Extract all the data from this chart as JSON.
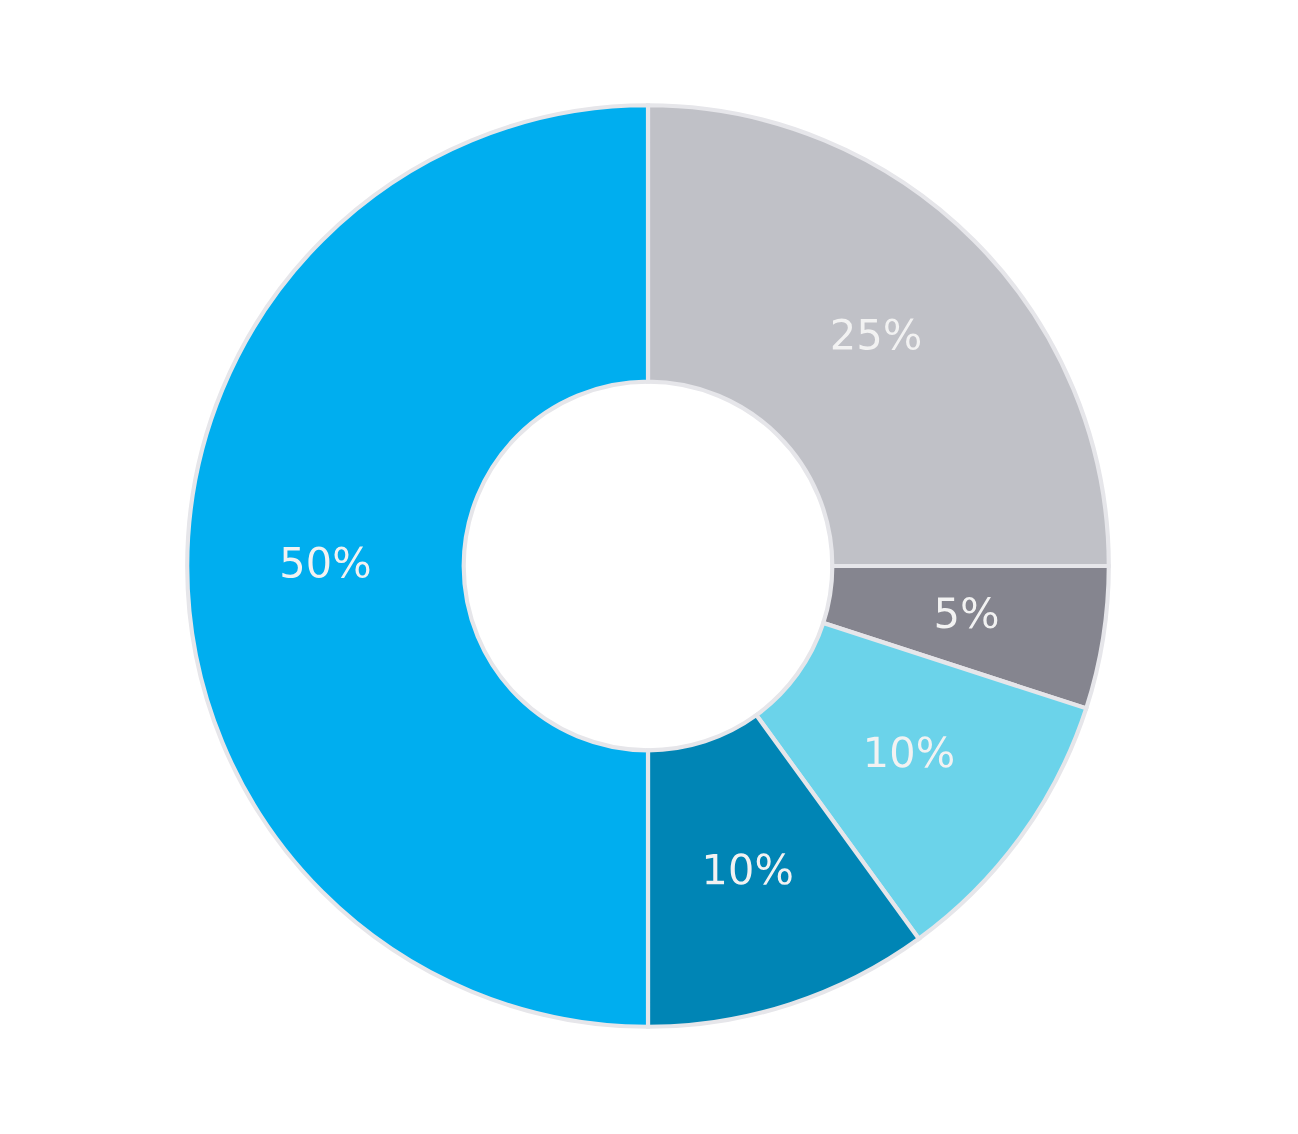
{
  "chart_data": {
    "type": "donut",
    "categories": [
      null,
      null,
      null,
      null,
      null
    ],
    "values": [
      25,
      5,
      10,
      10,
      50
    ],
    "colors": [
      "#c0c1c7",
      "#85858f",
      "#6bd3ea",
      "#0085b5",
      "#00aeef"
    ],
    "value_labels": [
      "25%",
      "5%",
      "10%",
      "10%",
      "50%"
    ],
    "legend": false
  }
}
